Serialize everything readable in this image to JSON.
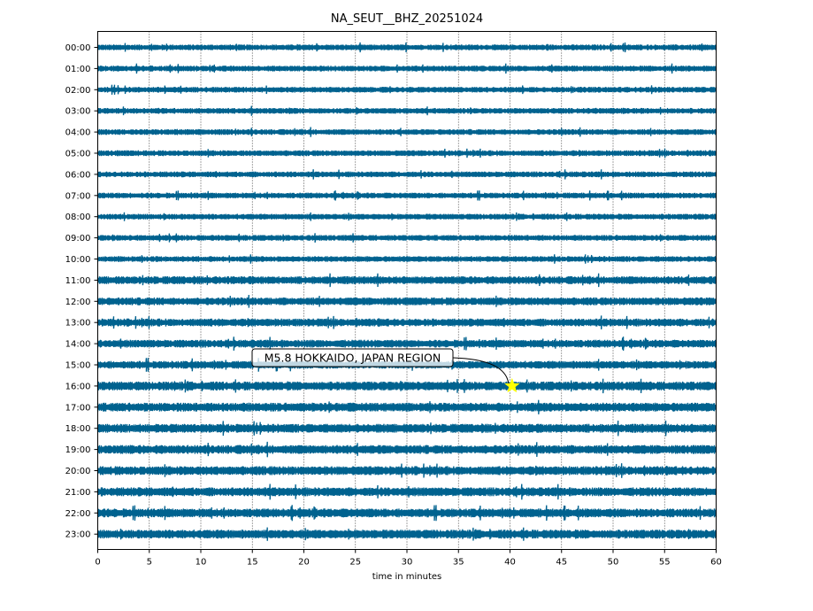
{
  "chart_data": {
    "type": "line",
    "title": "NA_SEUT__BHZ_20251024",
    "xlabel": "time in minutes",
    "ylabel": "",
    "xlim": [
      0,
      60
    ],
    "x_ticks": [
      "0",
      "5",
      "10",
      "15",
      "20",
      "25",
      "30",
      "35",
      "40",
      "45",
      "50",
      "55",
      "60"
    ],
    "rows": [
      "00:00",
      "01:00",
      "02:00",
      "03:00",
      "04:00",
      "05:00",
      "06:00",
      "07:00",
      "08:00",
      "09:00",
      "10:00",
      "11:00",
      "12:00",
      "13:00",
      "14:00",
      "15:00",
      "16:00",
      "17:00",
      "18:00",
      "19:00",
      "20:00",
      "21:00",
      "22:00",
      "23:00"
    ],
    "trace_color": "#00628f",
    "grid": "vertical dotted at each x tick",
    "event": {
      "label": "M5.8 HOKKAIDO, JAPAN REGION",
      "row": "16:00",
      "minute": 40.2,
      "marker": "star",
      "marker_color": "#ffff00"
    }
  }
}
